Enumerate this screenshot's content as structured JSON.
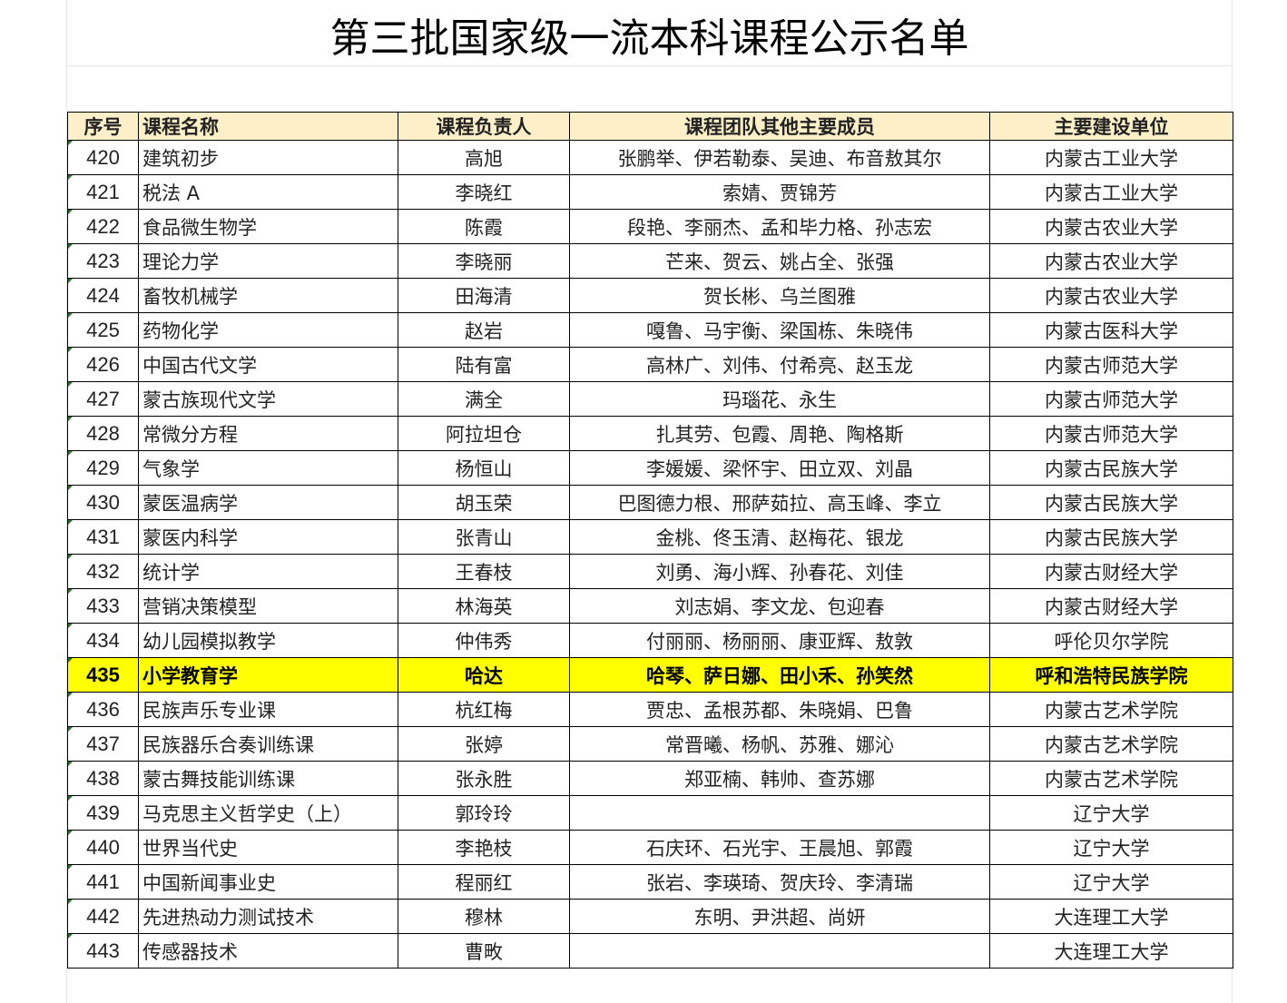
{
  "title": "第三批国家级一流本科课程公示名单",
  "headers": [
    "序号",
    "课程名称",
    "课程负责人",
    "课程团队其他主要成员",
    "主要建设单位"
  ],
  "highlight_color": "#ffff00",
  "rows": [
    [
      "420",
      "建筑初步",
      "高旭",
      "张鹏举、伊若勒泰、吴迪、布音敖其尔",
      "内蒙古工业大学"
    ],
    [
      "421",
      "税法 A",
      "李晓红",
      "索婧、贾锦芳",
      "内蒙古工业大学"
    ],
    [
      "422",
      "食品微生物学",
      "陈霞",
      "段艳、李丽杰、孟和毕力格、孙志宏",
      "内蒙古农业大学"
    ],
    [
      "423",
      "理论力学",
      "李晓丽",
      "芒来、贺云、姚占全、张强",
      "内蒙古农业大学"
    ],
    [
      "424",
      "畜牧机械学",
      "田海清",
      "贺长彬、乌兰图雅",
      "内蒙古农业大学"
    ],
    [
      "425",
      "药物化学",
      "赵岩",
      "嘎鲁、马宇衡、梁国栋、朱晓伟",
      "内蒙古医科大学"
    ],
    [
      "426",
      "中国古代文学",
      "陆有富",
      "高林广、刘伟、付希亮、赵玉龙",
      "内蒙古师范大学"
    ],
    [
      "427",
      "蒙古族现代文学",
      "满全",
      "玛瑙花、永生",
      "内蒙古师范大学"
    ],
    [
      "428",
      "常微分方程",
      "阿拉坦仓",
      "扎其劳、包霞、周艳、陶格斯",
      "内蒙古师范大学"
    ],
    [
      "429",
      "气象学",
      "杨恒山",
      "李媛媛、梁怀宇、田立双、刘晶",
      "内蒙古民族大学"
    ],
    [
      "430",
      "蒙医温病学",
      "胡玉荣",
      "巴图德力根、邢萨茹拉、高玉峰、李立",
      "内蒙古民族大学"
    ],
    [
      "431",
      "蒙医内科学",
      "张青山",
      "金桃、佟玉清、赵梅花、银龙",
      "内蒙古民族大学"
    ],
    [
      "432",
      "统计学",
      "王春枝",
      "刘勇、海小辉、孙春花、刘佳",
      "内蒙古财经大学"
    ],
    [
      "433",
      "营销决策模型",
      "林海英",
      "刘志娟、李文龙、包迎春",
      "内蒙古财经大学"
    ],
    [
      "434",
      "幼儿园模拟教学",
      "仲伟秀",
      "付丽丽、杨丽丽、康亚辉、敖敦",
      "呼伦贝尔学院"
    ],
    [
      "435",
      "小学教育学",
      "哈达",
      "哈琴、萨日娜、田小禾、孙笑然",
      "呼和浩特民族学院"
    ],
    [
      "436",
      "民族声乐专业课",
      "杭红梅",
      "贾忠、孟根苏都、朱晓娟、巴鲁",
      "内蒙古艺术学院"
    ],
    [
      "437",
      "民族器乐合奏训练课",
      "张婷",
      "常晋曦、杨帆、苏雅、娜沁",
      "内蒙古艺术学院"
    ],
    [
      "438",
      "蒙古舞技能训练课",
      "张永胜",
      "郑亚楠、韩帅、查苏娜",
      "内蒙古艺术学院"
    ],
    [
      "439",
      "马克思主义哲学史（上）",
      "郭玲玲",
      "",
      "辽宁大学"
    ],
    [
      "440",
      "世界当代史",
      "李艳枝",
      "石庆环、石光宇、王晨旭、郭霞",
      "辽宁大学"
    ],
    [
      "441",
      "中国新闻事业史",
      "程丽红",
      "张岩、李瑛琦、贺庆玲、李清瑞",
      "辽宁大学"
    ],
    [
      "442",
      "先进热动力测试技术",
      "穆林",
      "东明、尹洪超、尚妍",
      "大连理工大学"
    ],
    [
      "443",
      "传感器技术",
      "曹畋",
      "",
      "大连理工大学"
    ]
  ],
  "highlighted_row": "435"
}
